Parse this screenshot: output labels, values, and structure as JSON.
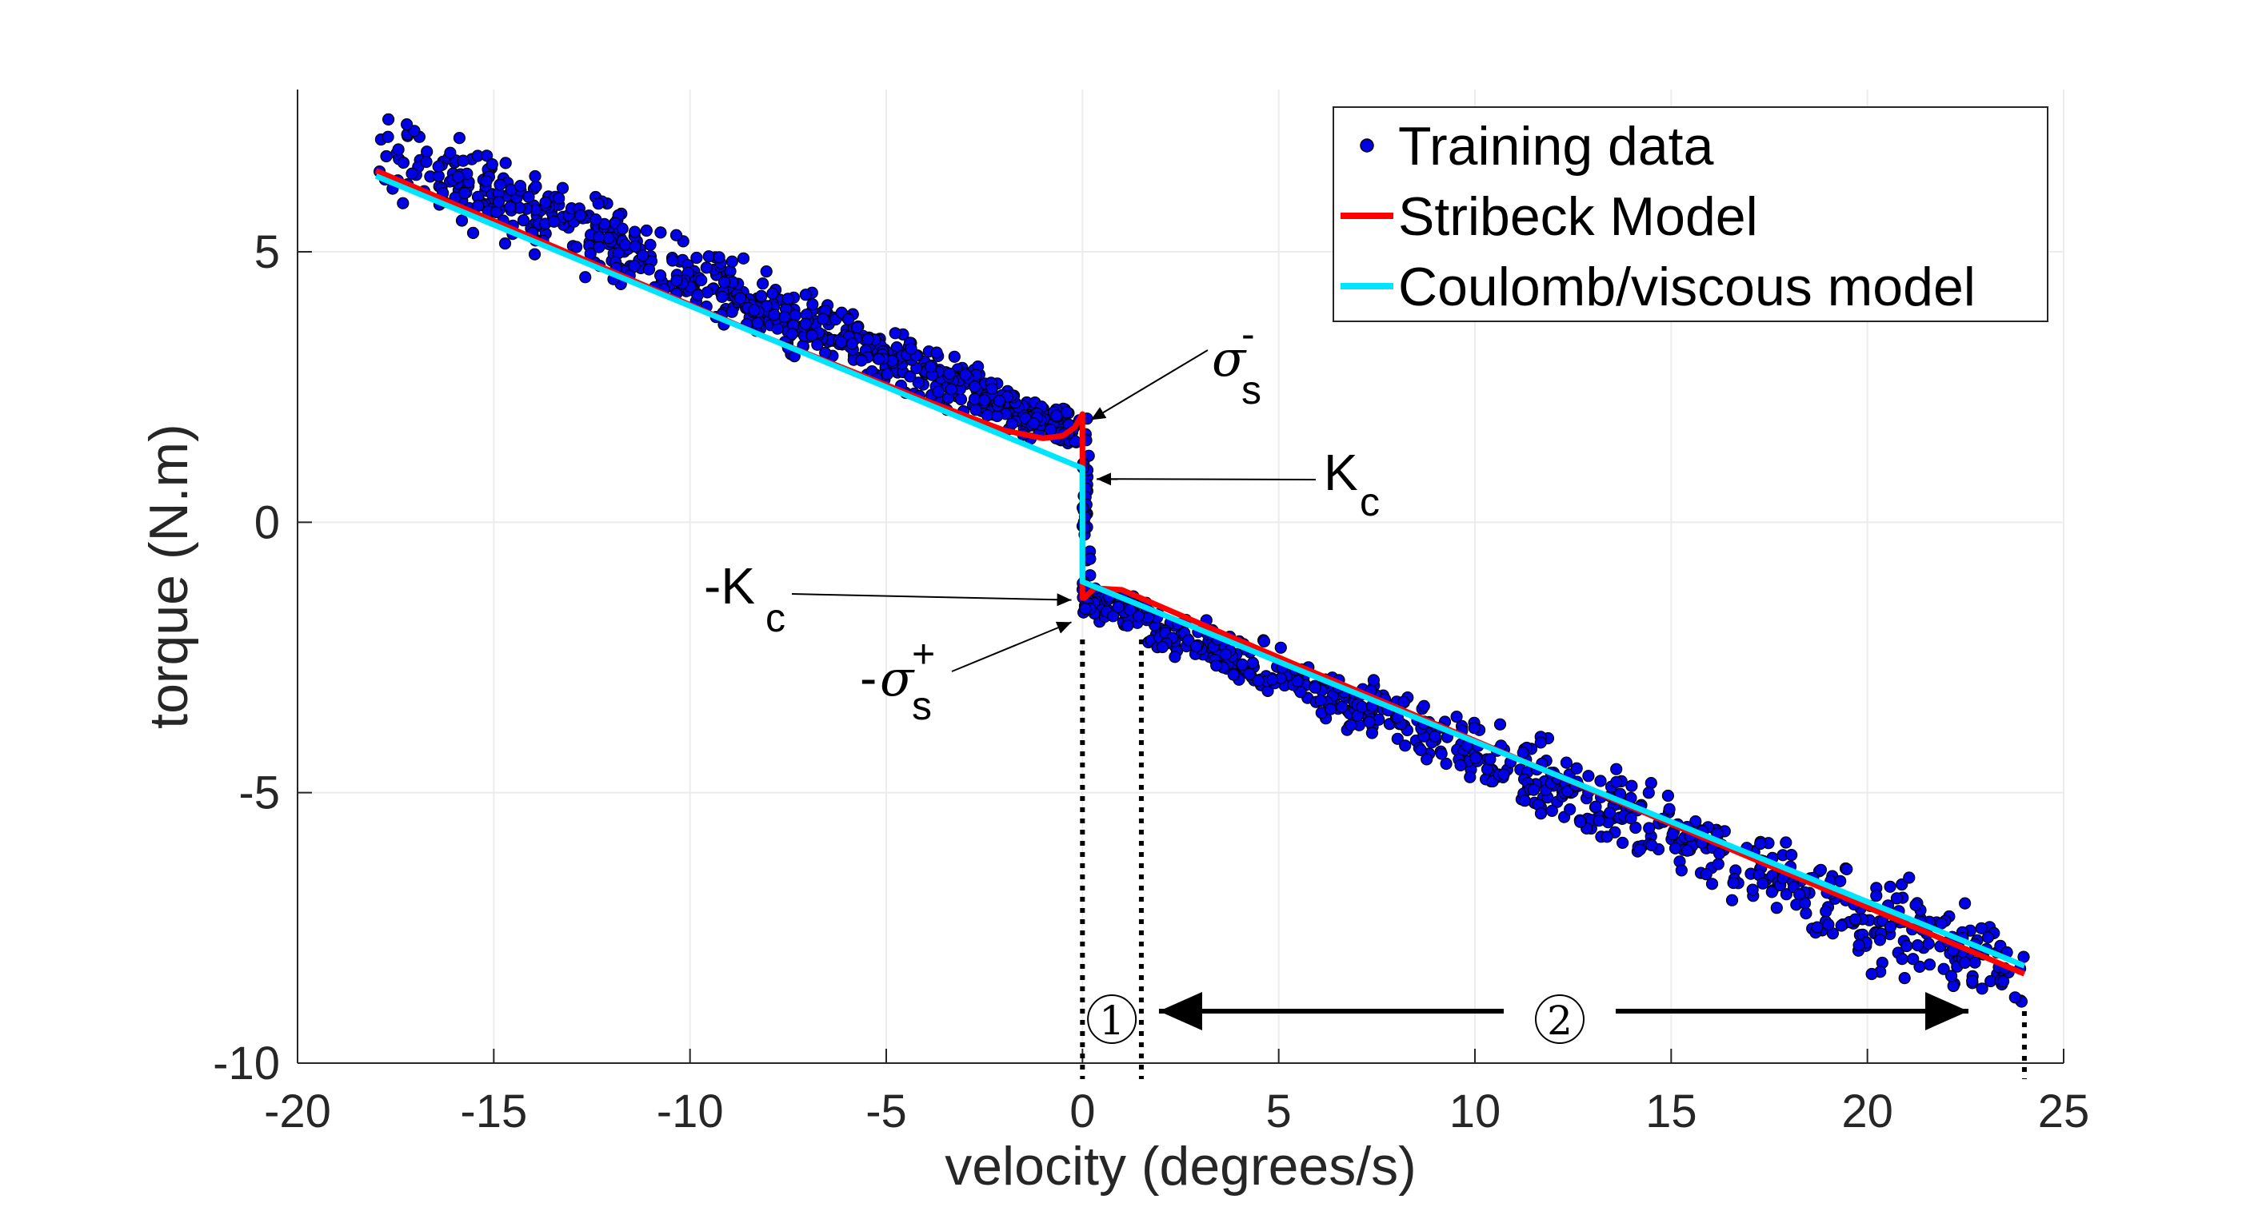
{
  "chart_data": {
    "type": "scatter",
    "title": "",
    "xlabel": "velocity (degrees/s)",
    "ylabel": "torque (N.m)",
    "xlim": [
      -20,
      25
    ],
    "ylim": [
      -10,
      8
    ],
    "xticks": [
      -20,
      -15,
      -10,
      -5,
      0,
      5,
      10,
      15,
      20,
      25
    ],
    "yticks": [
      -10,
      -5,
      0,
      5
    ],
    "grid": true,
    "legend_position": "top-right",
    "colors": {
      "scatter_fill": "#0000e6",
      "stribeck": "#ff0000",
      "coulomb": "#00e5ff"
    },
    "series": [
      {
        "name": "Training data",
        "kind": "scatter",
        "x_range": [
          -18,
          24
        ],
        "clusters": [
          {
            "x": [
              -18,
              0
            ],
            "y_at_start": 6.9,
            "y_at_end": 1.6,
            "n": 700
          },
          {
            "x": [
              0,
              0.2
            ],
            "y": [
              -1.6,
              2.0
            ],
            "n": 40
          },
          {
            "x": [
              0,
              24
            ],
            "y_at_start": -1.35,
            "y_at_end": -8.4,
            "n": 700
          }
        ]
      },
      {
        "name": "Stribeck Model",
        "kind": "line",
        "x": [
          -18,
          -8,
          -4,
          -2,
          -1,
          -0.5,
          -0.2,
          0,
          0,
          0.05,
          0.3,
          1,
          5,
          24
        ],
        "y": [
          6.5,
          3.4,
          2.25,
          1.7,
          1.55,
          1.6,
          1.75,
          2.0,
          -1.4,
          -1.4,
          -1.22,
          -1.25,
          -2.5,
          -8.35
        ]
      },
      {
        "name": "Coulomb/viscous model",
        "kind": "line",
        "x": [
          -18,
          0,
          0,
          24
        ],
        "y": [
          6.4,
          1.0,
          -1.1,
          -8.2
        ]
      }
    ],
    "annotations": [
      {
        "label": "σ",
        "superscript": "-",
        "subscript": "s",
        "prefix": "",
        "points_to": [
          0.05,
          1.95
        ]
      },
      {
        "label": "K",
        "subscript": "c",
        "prefix": "",
        "points_to": [
          0.2,
          0.8
        ]
      },
      {
        "label": "K",
        "subscript": "c",
        "prefix": "-",
        "points_to": [
          -0.2,
          -1.35
        ]
      },
      {
        "label": "σ",
        "superscript": "+",
        "subscript": "s",
        "prefix": "-",
        "points_to": [
          -0.2,
          -1.7
        ]
      }
    ],
    "regions": [
      {
        "label": "①",
        "x_from": 0,
        "x_to": 1.5
      },
      {
        "label": "②",
        "x_from": 1.5,
        "x_to": 24
      }
    ],
    "legend": [
      "Training data",
      "Stribeck Model",
      "Coulomb/viscous model"
    ]
  }
}
